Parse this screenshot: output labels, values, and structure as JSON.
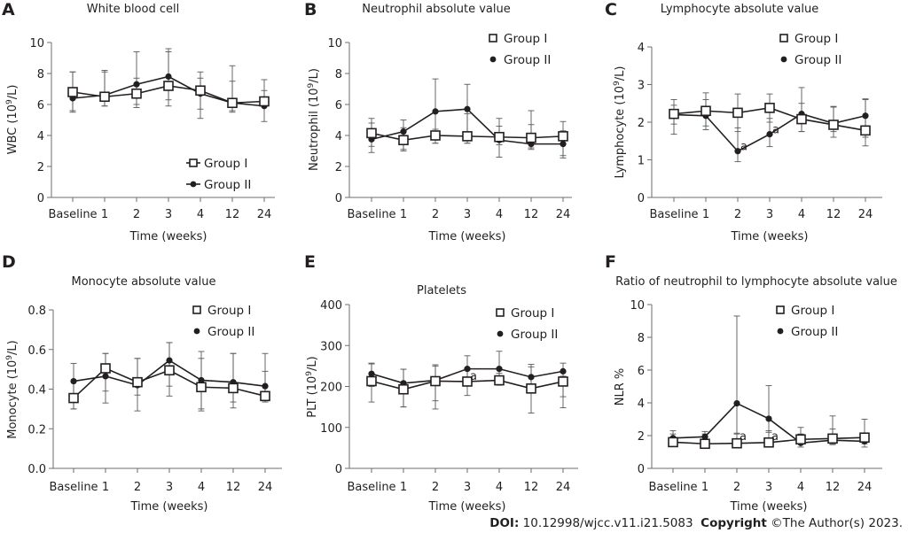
{
  "footer": {
    "doi_label": "DOI:",
    "doi_value": "10.12998/wjcc.v11.i21.5083",
    "copyright_label": "Copyright",
    "copyright_value": "©The Author(s) 2023."
  },
  "chart_data": [
    {
      "panel": "A",
      "type": "line",
      "title": "White blood cell",
      "xlabel": "Time (weeks)",
      "ylabel": "WBC (10^9/L)",
      "ylabel_parts": [
        "WBC (10",
        "9",
        "/L)"
      ],
      "categories": [
        "Baseline",
        "1",
        "2",
        "3",
        "4",
        "12",
        "24"
      ],
      "ylim": [
        0,
        10
      ],
      "yticks": [
        0,
        2,
        4,
        6,
        8,
        10
      ],
      "ytick_labels": [
        "0",
        "2",
        "4",
        "6",
        "8",
        "10"
      ],
      "legend_position": "bottom-right",
      "series": [
        {
          "name": "Group I",
          "marker": "open-square",
          "values": [
            6.8,
            6.5,
            6.7,
            7.2,
            6.9,
            6.1,
            6.2
          ],
          "err_upper": [
            8.1,
            8.1,
            7.7,
            9.4,
            7.7,
            7.5,
            6.9
          ],
          "err_lower": [
            5.6,
            5.9,
            6.0,
            6.3,
            5.7,
            5.6,
            5.9
          ]
        },
        {
          "name": "Group II",
          "marker": "filled-circle",
          "values": [
            6.4,
            6.6,
            7.3,
            7.8,
            6.7,
            6.1,
            5.9
          ],
          "err_upper": [
            8.1,
            8.2,
            9.4,
            9.6,
            8.1,
            8.5,
            7.6
          ],
          "err_lower": [
            5.5,
            5.9,
            5.8,
            5.9,
            5.1,
            5.5,
            4.9
          ]
        }
      ],
      "annotations": []
    },
    {
      "panel": "B",
      "type": "line",
      "title": "Neutrophil absolute value",
      "xlabel": "Time (weeks)",
      "ylabel": "Neutrophil (10^9/L)",
      "ylabel_parts": [
        "Neutrophil (10",
        "9",
        "/L)"
      ],
      "categories": [
        "Baseline",
        "1",
        "2",
        "3",
        "4",
        "12",
        "24"
      ],
      "ylim": [
        0,
        10
      ],
      "yticks": [
        0,
        2,
        4,
        6,
        8,
        10
      ],
      "ytick_labels": [
        "0",
        "2",
        "4",
        "6",
        "8",
        "10"
      ],
      "legend_position": "top-right",
      "series": [
        {
          "name": "Group I",
          "marker": "open-square",
          "values": [
            4.15,
            3.7,
            4.0,
            3.95,
            3.9,
            3.85,
            3.95
          ],
          "err_upper": [
            5.1,
            4.5,
            4.4,
            5.4,
            4.6,
            4.7,
            4.9
          ],
          "err_lower": [
            3.3,
            3.1,
            3.5,
            3.5,
            3.4,
            3.2,
            2.7
          ]
        },
        {
          "name": "Group II",
          "marker": "filled-circle",
          "values": [
            3.75,
            4.25,
            5.55,
            5.7,
            3.7,
            3.45,
            3.45
          ],
          "err_upper": [
            4.8,
            5.0,
            7.65,
            7.3,
            5.1,
            5.6,
            4.3
          ],
          "err_lower": [
            2.9,
            3.0,
            3.5,
            3.5,
            2.6,
            3.1,
            2.55
          ]
        }
      ],
      "annotations": []
    },
    {
      "panel": "C",
      "type": "line",
      "title": "Lymphocyte absolute value",
      "xlabel": "Time (weeks)",
      "ylabel": "Lymphocyte (10^9/L)",
      "ylabel_parts": [
        "Lymphocyte (10",
        "9",
        "/L)"
      ],
      "categories": [
        "Baseline",
        "1",
        "2",
        "3",
        "4",
        "12",
        "24"
      ],
      "ylim": [
        0,
        4
      ],
      "yticks": [
        0,
        1,
        2,
        3,
        4
      ],
      "ytick_labels": [
        "0",
        "1",
        "2",
        "3",
        "4"
      ],
      "legend_position": "top-right",
      "series": [
        {
          "name": "Group I",
          "marker": "open-square",
          "values": [
            2.22,
            2.3,
            2.25,
            2.38,
            2.08,
            1.93,
            1.78
          ],
          "err_upper": [
            2.6,
            2.78,
            2.75,
            2.75,
            2.5,
            2.42,
            2.6
          ],
          "err_lower": [
            1.95,
            1.9,
            1.75,
            2.0,
            1.75,
            1.6,
            1.6
          ]
        },
        {
          "name": "Group II",
          "marker": "filled-circle",
          "values": [
            2.2,
            2.17,
            1.23,
            1.68,
            2.22,
            1.97,
            2.17
          ],
          "err_upper": [
            2.45,
            2.6,
            1.85,
            2.1,
            2.92,
            2.4,
            2.62
          ],
          "err_lower": [
            1.68,
            1.8,
            0.95,
            1.35,
            1.75,
            1.75,
            1.37
          ]
        }
      ],
      "annotations": [
        {
          "text": "a",
          "category": "2",
          "y": 1.35
        },
        {
          "text": "a",
          "category": "3",
          "y": 1.8
        }
      ]
    },
    {
      "panel": "D",
      "type": "line",
      "title": "Monocyte absolute value",
      "xlabel": "Time (weeks)",
      "ylabel": "Monocyte (10^9/L)",
      "ylabel_parts": [
        "Monocyte (10",
        "9",
        "/L)"
      ],
      "categories": [
        "Baseline",
        "1",
        "2",
        "3",
        "4",
        "12",
        "24"
      ],
      "ylim": [
        0,
        0.8
      ],
      "yticks": [
        0,
        0.2,
        0.4,
        0.6,
        0.8
      ],
      "ytick_labels": [
        "0.0",
        "0.2",
        "0.4",
        "0.6",
        "0.8"
      ],
      "legend_position": "top-right",
      "series": [
        {
          "name": "Group I",
          "marker": "open-square",
          "values": [
            0.355,
            0.505,
            0.435,
            0.495,
            0.41,
            0.405,
            0.365
          ],
          "err_upper": [
            0.44,
            0.58,
            0.555,
            0.635,
            0.555,
            0.58,
            0.49
          ],
          "err_lower": [
            0.3,
            0.39,
            0.29,
            0.365,
            0.3,
            0.335,
            0.335
          ]
        },
        {
          "name": "Group II",
          "marker": "filled-circle",
          "values": [
            0.44,
            0.465,
            0.42,
            0.545,
            0.445,
            0.435,
            0.415
          ],
          "err_upper": [
            0.53,
            0.58,
            0.555,
            0.635,
            0.59,
            0.58,
            0.58
          ],
          "err_lower": [
            0.3,
            0.33,
            0.37,
            0.415,
            0.29,
            0.305,
            0.345
          ]
        }
      ],
      "annotations": []
    },
    {
      "panel": "E",
      "type": "line",
      "title": "Platelets",
      "xlabel": "Time (weeks)",
      "ylabel": "PLT (10^9/L)",
      "ylabel_parts": [
        "PLT (10",
        "9",
        "/L)"
      ],
      "categories": [
        "Baseline",
        "1",
        "2",
        "3",
        "4",
        "12",
        "24"
      ],
      "ylim": [
        0,
        400
      ],
      "yticks": [
        0,
        100,
        200,
        300,
        400
      ],
      "ytick_labels": [
        "0",
        "100",
        "200",
        "300",
        "400"
      ],
      "legend_position": "top-right",
      "series": [
        {
          "name": "Group I",
          "marker": "open-square",
          "values": [
            213,
            193,
            213,
            212,
            215,
            195,
            212
          ],
          "err_upper": [
            255,
            242,
            250,
            240,
            232,
            248,
            225
          ],
          "err_lower": [
            162,
            150,
            165,
            178,
            203,
            135,
            148
          ]
        },
        {
          "name": "Group II",
          "marker": "filled-circle",
          "values": [
            231,
            208,
            215,
            243,
            243,
            223,
            237
          ],
          "err_upper": [
            257,
            242,
            253,
            275,
            286,
            254,
            257
          ],
          "err_lower": [
            200,
            150,
            145,
            220,
            205,
            195,
            175
          ]
        }
      ],
      "annotations": [
        {
          "text": "a",
          "category": "3",
          "y": 225
        }
      ]
    },
    {
      "panel": "F",
      "type": "line",
      "title": "Ratio of neutrophil to lymphocyte absolute value",
      "xlabel": "Time (weeks)",
      "ylabel": "NLR %",
      "ylabel_parts": [
        "NLR %",
        "",
        ""
      ],
      "categories": [
        "Baseline",
        "1",
        "2",
        "3",
        "4",
        "12",
        "24"
      ],
      "ylim": [
        0,
        10
      ],
      "yticks": [
        0,
        2,
        4,
        6,
        8,
        10
      ],
      "ytick_labels": [
        "0",
        "2",
        "4",
        "6",
        "8",
        "10"
      ],
      "legend_position": "top-right",
      "series": [
        {
          "name": "Group I",
          "marker": "open-square",
          "values": [
            1.6,
            1.5,
            1.53,
            1.58,
            1.77,
            1.82,
            1.88
          ],
          "err_upper": [
            2.1,
            2.1,
            2.15,
            2.3,
            2.5,
            3.2,
            3.0
          ],
          "err_lower": [
            1.4,
            1.3,
            1.4,
            1.4,
            1.5,
            1.5,
            1.5
          ]
        },
        {
          "name": "Group II",
          "marker": "filled-circle",
          "values": [
            1.85,
            1.93,
            3.97,
            3.03,
            1.55,
            1.72,
            1.65
          ],
          "err_upper": [
            2.3,
            2.25,
            9.3,
            5.05,
            2.1,
            2.4,
            2.1
          ],
          "err_lower": [
            1.5,
            1.5,
            2.1,
            2.2,
            1.3,
            1.45,
            1.3
          ]
        }
      ],
      "annotations": [
        {
          "text": "a",
          "category": "2",
          "y": 1.95
        },
        {
          "text": "a",
          "category": "3",
          "y": 1.95
        }
      ]
    }
  ]
}
